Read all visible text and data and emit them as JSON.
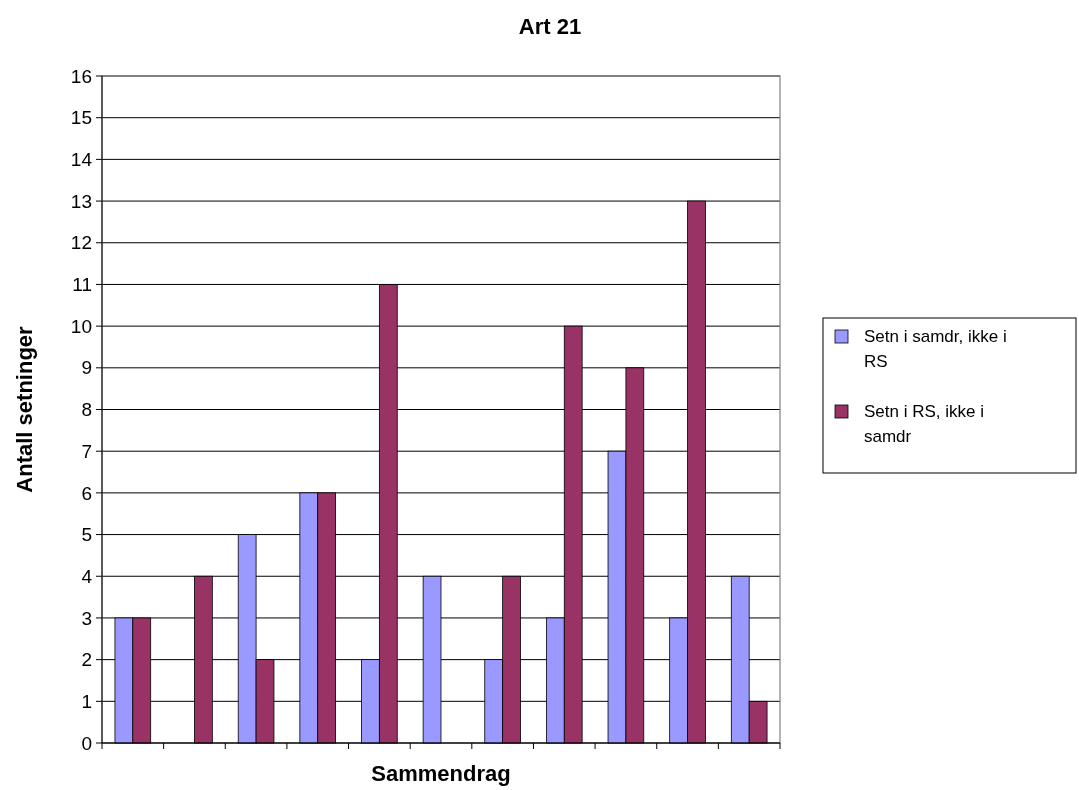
{
  "chart_data": {
    "type": "bar",
    "title": "Art 21",
    "xlabel": "Sammendrag",
    "ylabel": "Antall setninger",
    "categories": [
      null,
      null,
      null,
      null,
      null,
      null,
      null,
      null,
      null,
      null,
      null
    ],
    "series": [
      {
        "name": "Setn i samdr, ikke i RS",
        "color": "#9999ff",
        "values": [
          3,
          0,
          5,
          6,
          2,
          4,
          2,
          3,
          7,
          3,
          4
        ]
      },
      {
        "name": "Setn i RS, ikke i samdr",
        "color": "#993366",
        "values": [
          3,
          4,
          2,
          6,
          11,
          0,
          4,
          10,
          9,
          13,
          1
        ]
      }
    ],
    "ylim": [
      0,
      16
    ],
    "yticks": [
      0,
      1,
      2,
      3,
      4,
      5,
      6,
      7,
      8,
      9,
      10,
      11,
      12,
      13,
      14,
      15,
      16
    ],
    "grid": "y",
    "legend": "right"
  }
}
